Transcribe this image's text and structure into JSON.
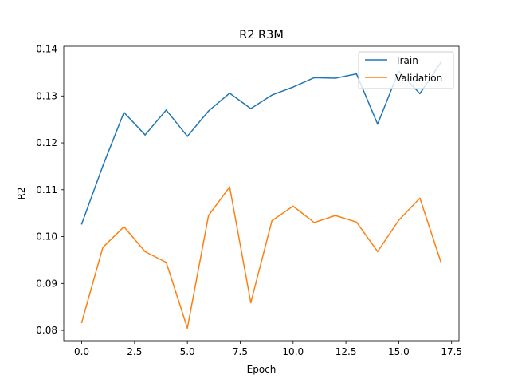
{
  "chart_data": {
    "type": "line",
    "title": "R2 R3M",
    "xlabel": "Epoch",
    "ylabel": "R2",
    "x": [
      0,
      1,
      2,
      3,
      4,
      5,
      6,
      7,
      8,
      9,
      10,
      11,
      12,
      13,
      14,
      15,
      16,
      17
    ],
    "series": [
      {
        "name": "Train",
        "color": "#1f77b4",
        "values": [
          0.1027,
          0.1151,
          0.1265,
          0.1217,
          0.127,
          0.1214,
          0.1268,
          0.1306,
          0.1273,
          0.1302,
          0.1319,
          0.1339,
          0.1338,
          0.1347,
          0.124,
          0.1353,
          0.1305,
          0.1372
        ]
      },
      {
        "name": "Validation",
        "color": "#ff7f0e",
        "values": [
          0.0817,
          0.0977,
          0.1021,
          0.0968,
          0.0945,
          0.0805,
          0.1045,
          0.1106,
          0.0859,
          0.1034,
          0.1065,
          0.103,
          0.1045,
          0.1031,
          0.0968,
          0.1035,
          0.1082,
          0.0945
        ]
      }
    ],
    "xlim": [
      -0.85,
      17.85
    ],
    "ylim": [
      0.0778,
      0.1406
    ],
    "xticks": [
      0.0,
      2.5,
      5.0,
      7.5,
      10.0,
      12.5,
      15.0,
      17.5
    ],
    "xtick_labels": [
      "0.0",
      "2.5",
      "5.0",
      "7.5",
      "10.0",
      "12.5",
      "15.0",
      "17.5"
    ],
    "yticks": [
      0.08,
      0.09,
      0.1,
      0.11,
      0.12,
      0.13,
      0.14
    ],
    "ytick_labels": [
      "0.08",
      "0.09",
      "0.10",
      "0.11",
      "0.12",
      "0.13",
      "0.14"
    ],
    "grid": false,
    "legend_position": "top-right"
  }
}
